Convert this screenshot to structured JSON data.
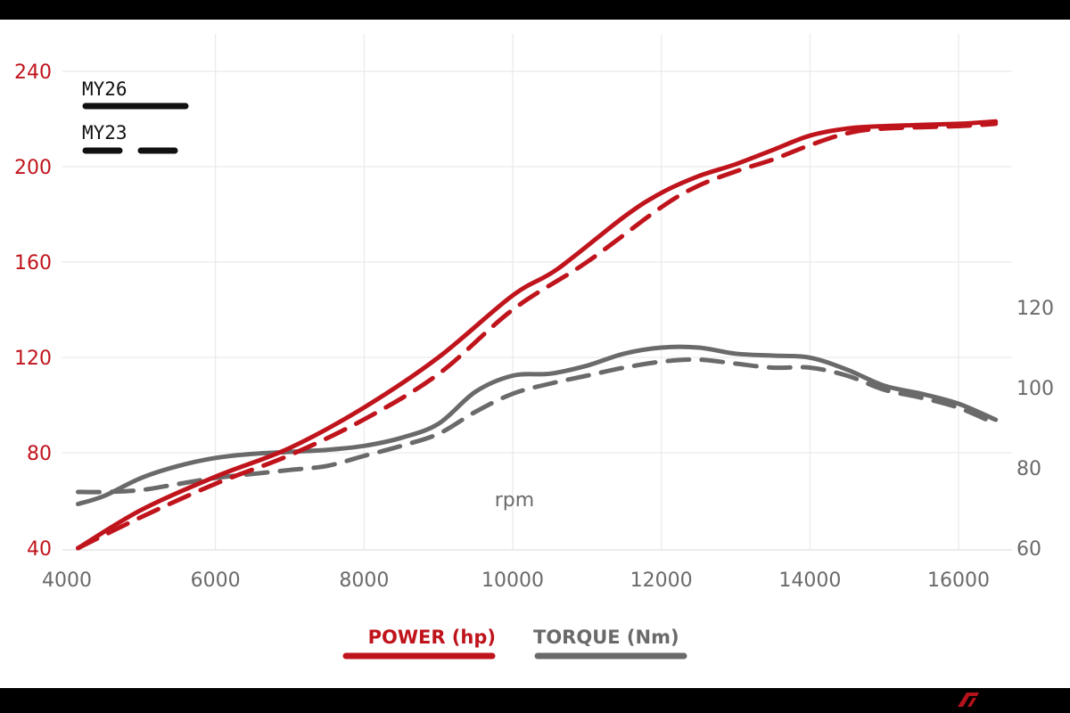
{
  "colors": {
    "power": "#c0141c",
    "torque": "#6a6a6a",
    "grid": "#e6e6e6",
    "legend_line": "#111111"
  },
  "chart_data": {
    "type": "line",
    "xlabel": "rpm",
    "x_ticks": [
      "4000",
      "6000",
      "8000",
      "10000",
      "12000",
      "14000",
      "16000"
    ],
    "xlim": [
      4000,
      16500
    ],
    "y_left_ticks": [
      "40",
      "80",
      "120",
      "160",
      "200",
      "240"
    ],
    "ylim_left": [
      40,
      240
    ],
    "y_right_ticks": [
      "60",
      "80",
      "100",
      "120"
    ],
    "ylim_right": [
      60,
      180
    ],
    "grid": true,
    "legend": {
      "styles": [
        {
          "label": "MY26",
          "dash": "solid"
        },
        {
          "label": "MY23",
          "dash": "dashed"
        }
      ],
      "metrics": [
        {
          "label": "POWER (hp)",
          "color": "#c0141c"
        },
        {
          "label": "TORQUE (Nm)",
          "color": "#6a6a6a"
        }
      ],
      "placement": "top-left and bottom-center"
    },
    "series": [
      {
        "metric": "power",
        "style": "MY26",
        "axis": "left",
        "x": [
          4150,
          5000,
          6000,
          7000,
          8000,
          9000,
          10000,
          10600,
          11500,
          12000,
          12500,
          13000,
          13500,
          14000,
          14500,
          15000,
          16000,
          16500
        ],
        "y": [
          40,
          56,
          70,
          82,
          99,
          120,
          146,
          157,
          179,
          189,
          196,
          201,
          207,
          213,
          216,
          217,
          218,
          219
        ]
      },
      {
        "metric": "power",
        "style": "MY23",
        "axis": "left",
        "x": [
          4150,
          5000,
          6000,
          7000,
          8000,
          9000,
          10000,
          11000,
          12000,
          12500,
          13000,
          13500,
          14000,
          14500,
          15000,
          16000,
          16500
        ],
        "y": [
          40,
          53,
          67,
          79,
          94,
          113,
          140,
          160,
          183,
          192,
          198,
          203,
          209,
          214,
          216,
          217,
          218
        ]
      },
      {
        "metric": "torque",
        "style": "MY26",
        "axis": "right",
        "x": [
          4150,
          4500,
          5000,
          5500,
          6000,
          6500,
          7000,
          7500,
          8000,
          8500,
          9000,
          9500,
          10000,
          10500,
          11000,
          11500,
          12000,
          12500,
          13000,
          13500,
          14000,
          14500,
          15000,
          15500,
          16000,
          16500
        ],
        "y": [
          71,
          73,
          77.5,
          80.5,
          82.5,
          83.5,
          84,
          84.5,
          85.5,
          87.5,
          91,
          99,
          103,
          103.5,
          105.5,
          108.5,
          110,
          110,
          108.5,
          108,
          107.5,
          104.5,
          100.5,
          98.5,
          96,
          92
        ]
      },
      {
        "metric": "torque",
        "style": "MY23",
        "axis": "right",
        "x": [
          4150,
          4500,
          5000,
          5500,
          6000,
          6500,
          7000,
          7500,
          8000,
          8500,
          9000,
          9500,
          10000,
          10500,
          11000,
          11500,
          12000,
          12500,
          13000,
          13500,
          14000,
          14500,
          15000,
          15500,
          16000,
          16500
        ],
        "y": [
          74,
          74,
          74.5,
          76,
          77.5,
          78.5,
          79.5,
          80.5,
          83,
          85.5,
          88.5,
          94,
          98.5,
          101,
          103,
          105,
          106.5,
          107,
          106,
          105,
          105,
          103,
          99.5,
          97.5,
          95,
          91
        ]
      }
    ]
  }
}
